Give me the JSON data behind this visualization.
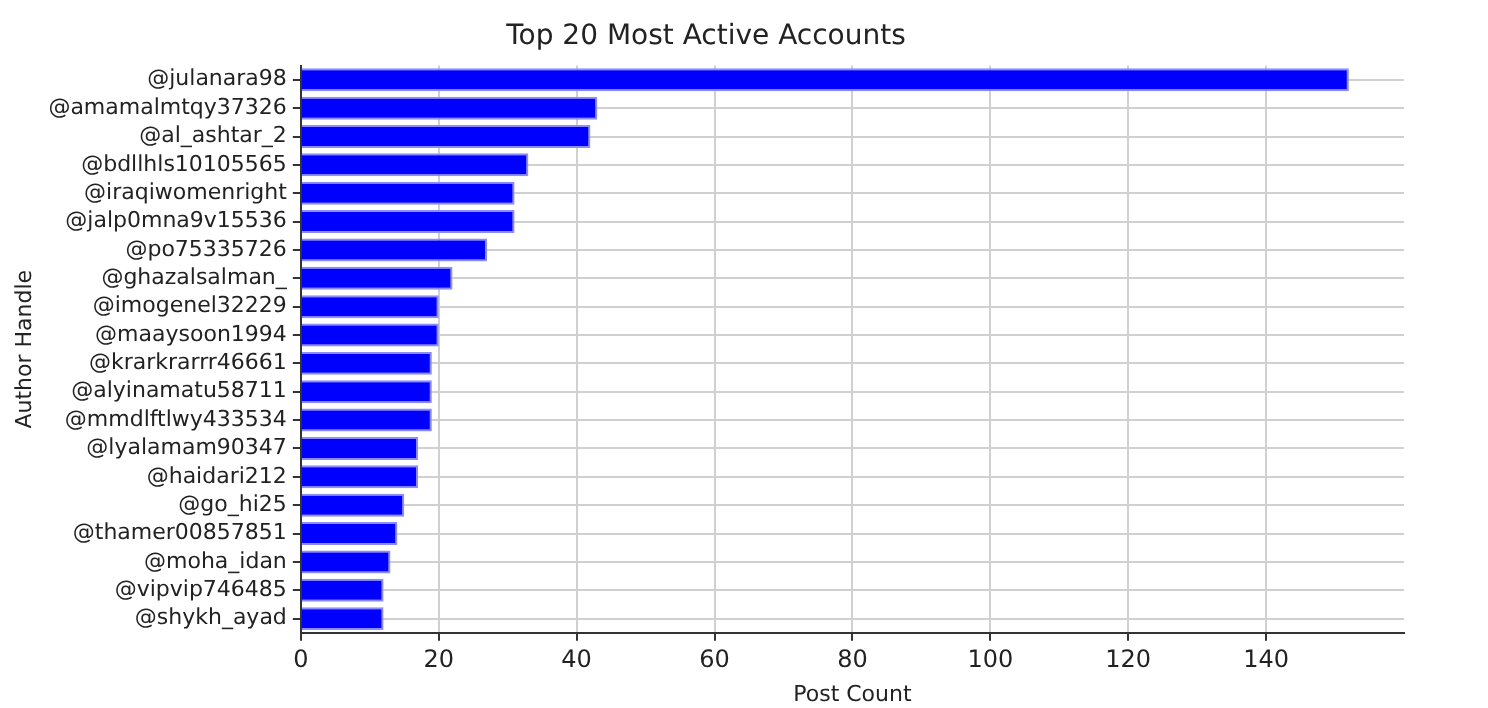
{
  "chart_data": {
    "type": "bar",
    "orientation": "horizontal",
    "title": "Top 20 Most Active Accounts",
    "xlabel": "Post Count",
    "ylabel": "Author Handle",
    "categories": [
      "@julanara98",
      "@amamalmtqy37326",
      "@al_ashtar_2",
      "@bdllhls10105565",
      "@iraqiwomenright",
      "@jalp0mna9v15536",
      "@po75335726",
      "@ghazalsalman_",
      "@imogenel32229",
      "@maaysoon1994",
      "@krarkrarrr46661",
      "@alyinamatu58711",
      "@mmdlftlwy433534",
      "@lyalamam90347",
      "@haidari212",
      "@go_hi25",
      "@thamer00857851",
      "@moha_idan",
      "@vipvip746485",
      "@shykh_ayad"
    ],
    "values": [
      152,
      43,
      42,
      33,
      31,
      31,
      27,
      22,
      20,
      20,
      19,
      19,
      19,
      17,
      17,
      15,
      14,
      13,
      12,
      12
    ],
    "color": "#0000ff",
    "xlim": [
      0,
      160
    ],
    "xticks": [
      0,
      20,
      40,
      60,
      80,
      100,
      120,
      140
    ],
    "grid": true
  }
}
